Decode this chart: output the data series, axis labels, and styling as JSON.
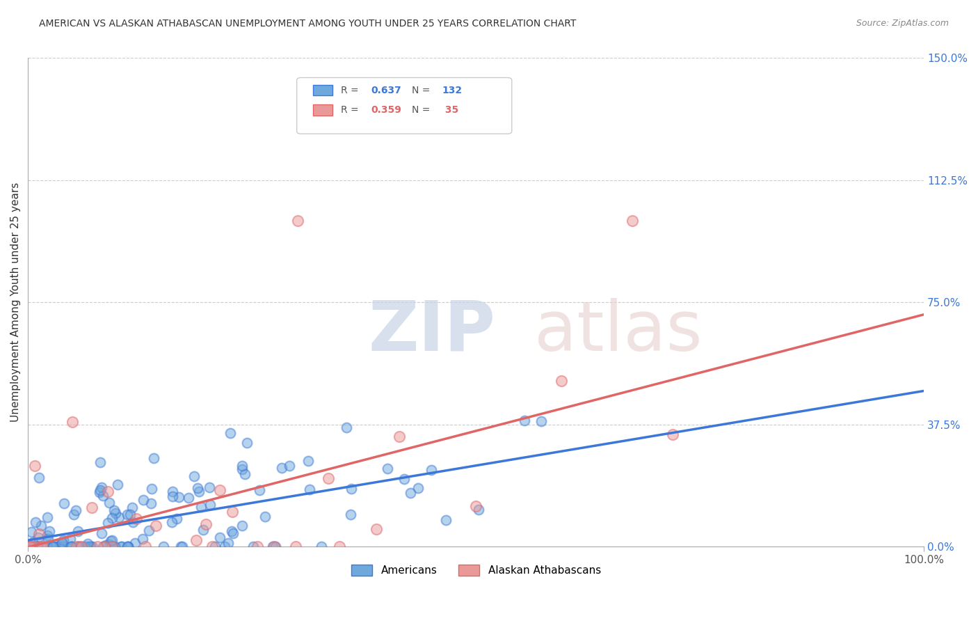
{
  "title": "AMERICAN VS ALASKAN ATHABASCAN UNEMPLOYMENT AMONG YOUTH UNDER 25 YEARS CORRELATION CHART",
  "source": "Source: ZipAtlas.com",
  "ylabel": "Unemployment Among Youth under 25 years",
  "ytick_values": [
    0,
    37.5,
    75.0,
    112.5,
    150.0
  ],
  "xlim": [
    0,
    100
  ],
  "ylim": [
    0,
    150
  ],
  "blue_color": "#6fa8dc",
  "pink_color": "#ea9999",
  "blue_line_color": "#3c78d8",
  "pink_line_color": "#e06666",
  "americans_R": "0.637",
  "americans_N": "132",
  "athabascan_R": "0.359",
  "athabascan_N": "35"
}
